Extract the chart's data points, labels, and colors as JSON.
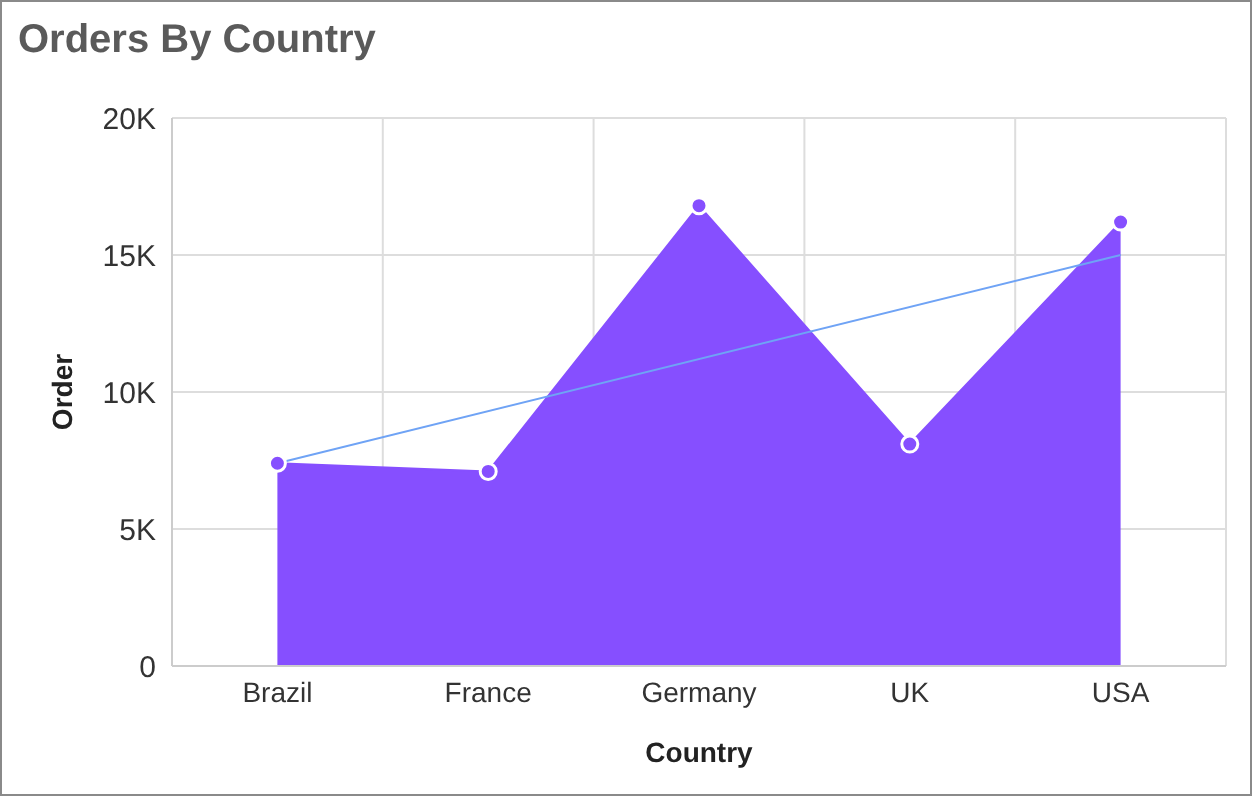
{
  "chart_data": {
    "type": "area",
    "title": "Orders By Country",
    "xlabel": "Country",
    "ylabel": "Order",
    "categories": [
      "Brazil",
      "France",
      "Germany",
      "UK",
      "USA"
    ],
    "series": [
      {
        "color": "#864fff",
        "values": [
          7400,
          7100,
          16800,
          8100,
          16200
        ],
        "marker": "circle"
      },
      {
        "type": "line",
        "color": "#6fa3f5",
        "x": [
          "Brazil",
          "USA"
        ],
        "values": [
          7400,
          15000
        ],
        "marker": "none"
      }
    ],
    "ylim": [
      0,
      20000
    ],
    "yticks": [
      {
        "value": 0,
        "label": "0"
      },
      {
        "value": 5000,
        "label": "5K"
      },
      {
        "value": 10000,
        "label": "10K"
      },
      {
        "value": 15000,
        "label": "15K"
      },
      {
        "value": 20000,
        "label": "20K"
      }
    ],
    "grid": true,
    "legend": false
  }
}
